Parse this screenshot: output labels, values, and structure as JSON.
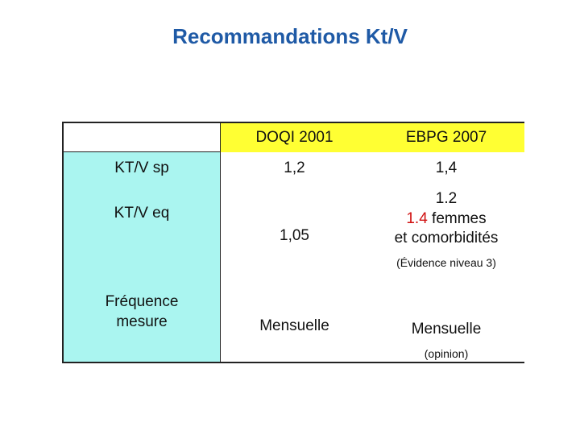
{
  "title": "Recommandations Kt/V",
  "table": {
    "headers": [
      "DOQI 2001",
      "EBPG 2007"
    ],
    "rows": [
      {
        "label": "KT/V sp",
        "doqi": "1,2",
        "ebpg": "1,4"
      },
      {
        "label": "KT/V eq",
        "doqi": "1,05",
        "ebpg_line1": "1.2",
        "ebpg_line2_red": "1.4",
        "ebpg_line2_rest": " femmes",
        "ebpg_line3": "et comorbidités",
        "ebpg_note": "(Évidence niveau 3)"
      },
      {
        "label_line1": "Fréquence",
        "label_line2": "mesure",
        "doqi": "Mensuelle",
        "ebpg": "Mensuelle",
        "ebpg_note": "(opinion)"
      }
    ]
  },
  "colors": {
    "title": "#1f5aa6",
    "label_bg": "#aaf5f0",
    "header_bg": "#ffff33",
    "highlight": "#d01010"
  }
}
